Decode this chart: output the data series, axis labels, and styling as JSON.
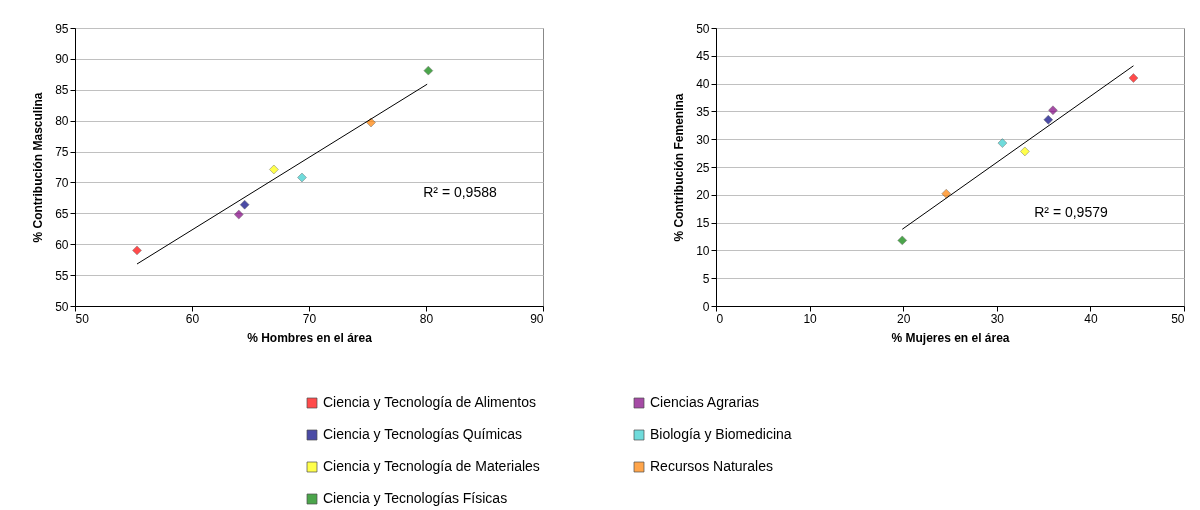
{
  "chart_data": [
    {
      "type": "scatter",
      "xlabel": "% Hombres en el área",
      "ylabel": "% Contribución Masculina",
      "xlim": [
        50,
        90
      ],
      "xticks": [
        50,
        60,
        70,
        80,
        90
      ],
      "ylim": [
        50,
        95
      ],
      "yticks": [
        50,
        55,
        60,
        65,
        70,
        75,
        80,
        85,
        90,
        95
      ],
      "grid": "y",
      "marker": "diamond",
      "legend": "bottom",
      "annotations": [
        "R² = 0,9588"
      ],
      "series": [
        {
          "name": "Ciencia y Tecnología de Alimentos",
          "color": "#ff0000",
          "x": [
            55.3
          ],
          "values": [
            59
          ]
        },
        {
          "name": "Ciencias Agrarias",
          "color": "#800080",
          "x": [
            64
          ],
          "values": [
            64.8
          ]
        },
        {
          "name": "Ciencia y Tecnologías Químicas",
          "color": "#000080",
          "x": [
            64.5
          ],
          "values": [
            66.4
          ]
        },
        {
          "name": "Biología y Biomedicina",
          "color": "#33cccc",
          "x": [
            69.4
          ],
          "values": [
            70.8
          ]
        },
        {
          "name": "Ciencia y Tecnología de Materiales",
          "color": "#ffff00",
          "x": [
            67
          ],
          "values": [
            72.1
          ]
        },
        {
          "name": "Recursos Naturales",
          "color": "#ff8000",
          "x": [
            75.3
          ],
          "values": [
            79.7
          ]
        },
        {
          "name": "Ciencia y Tecnologías Físicas",
          "color": "#008000",
          "x": [
            80.2
          ],
          "values": [
            88.1
          ]
        },
        {
          "type": "line",
          "color": "#000000",
          "marker": "none",
          "x": [
            55.3,
            80.1
          ],
          "values": [
            56.8,
            85.9
          ]
        }
      ]
    },
    {
      "type": "scatter",
      "xlabel": "% Mujeres en el área",
      "ylabel": "% Contribución Femenina",
      "xlim": [
        0,
        50
      ],
      "xticks": [
        0,
        10,
        20,
        30,
        40,
        50
      ],
      "ylim": [
        0,
        50
      ],
      "yticks": [
        0,
        5,
        10,
        15,
        20,
        25,
        30,
        35,
        40,
        45,
        50
      ],
      "grid": "y",
      "marker": "diamond",
      "legend": "bottom",
      "annotations": [
        "R² = 0,9579"
      ],
      "series": [
        {
          "name": "Ciencia y Tecnología de Alimentos",
          "color": "#ff0000",
          "x": [
            44.6
          ],
          "values": [
            41
          ]
        },
        {
          "name": "Ciencias Agrarias",
          "color": "#800080",
          "x": [
            36
          ],
          "values": [
            35.2
          ]
        },
        {
          "name": "Ciencia y Tecnologías Químicas",
          "color": "#000080",
          "x": [
            35.5
          ],
          "values": [
            33.5
          ]
        },
        {
          "name": "Biología y Biomedicina",
          "color": "#33cccc",
          "x": [
            30.6
          ],
          "values": [
            29.3
          ]
        },
        {
          "name": "Ciencia y Tecnología de Materiales",
          "color": "#ffff00",
          "x": [
            33
          ],
          "values": [
            27.8
          ]
        },
        {
          "name": "Recursos Naturales",
          "color": "#ff8000",
          "x": [
            24.6
          ],
          "values": [
            20.2
          ]
        },
        {
          "name": "Ciencia y Tecnologías Físicas",
          "color": "#008000",
          "x": [
            19.9
          ],
          "values": [
            11.8
          ]
        },
        {
          "type": "line",
          "color": "#000000",
          "marker": "none",
          "x": [
            19.9,
            44.6
          ],
          "values": [
            13.8,
            43.2
          ]
        }
      ]
    }
  ]
}
